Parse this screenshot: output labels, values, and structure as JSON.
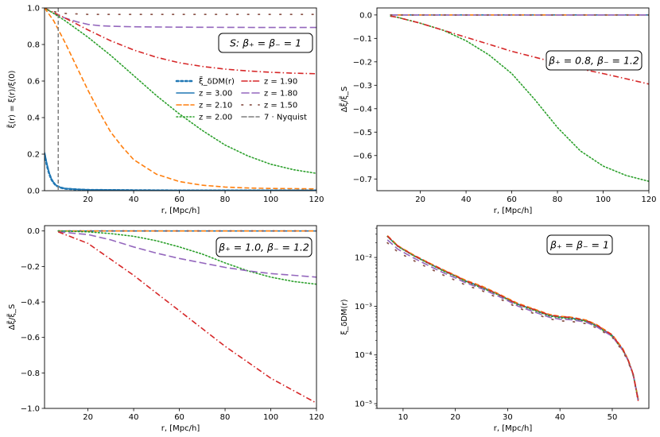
{
  "colors": {
    "z300": "#1f77b4",
    "z210": "#ff7f0e",
    "z200": "#2ca02c",
    "z190": "#d62728",
    "z180": "#9467bd",
    "z150": "#8c564b",
    "nyquist": "#7f7f7f"
  },
  "chart_data": [
    {
      "id": "p1",
      "type": "line",
      "ylabel": "ξ̃(r) = ξ(r)/ξ(0)",
      "xlabel": "r, [Mpc/h]",
      "xlim": [
        1,
        120
      ],
      "ylim": [
        0,
        1.0
      ],
      "yscale": "linear",
      "xticks": [
        "20",
        "40",
        "60",
        "80",
        "100",
        "120"
      ],
      "xtick_values": [
        20,
        40,
        60,
        80,
        100,
        120
      ],
      "yticks": [
        "0.0",
        "0.2",
        "0.4",
        "0.6",
        "0.8",
        "1.0"
      ],
      "ytick_values": [
        0,
        0.2,
        0.4,
        0.6,
        0.8,
        1.0
      ],
      "box_text": "S: β₊ = β₋ = 1",
      "legend": {
        "placement": "center-right",
        "entries": [
          {
            "label": "ξ̃_δDM(r)",
            "color_key": "z300",
            "dash": "dots-thick"
          },
          {
            "label": "z = 3.00",
            "color_key": "z300",
            "dash": "solid"
          },
          {
            "label": "z = 2.10",
            "color_key": "z210",
            "dash": "dashed"
          },
          {
            "label": "z = 2.00",
            "color_key": "z200",
            "dash": "dotted"
          },
          {
            "label": "z = 1.90",
            "color_key": "z190",
            "dash": "dashdot"
          },
          {
            "label": "z = 1.80",
            "color_key": "z180",
            "dash": "longdash"
          },
          {
            "label": "z = 1.50",
            "color_key": "z150",
            "dash": "sparse-dots"
          },
          {
            "label": "7 · Nyquist",
            "color_key": "nyquist",
            "dash": "dashed"
          }
        ]
      },
      "vline_x": 7,
      "series": [
        {
          "name": "z = 1.50",
          "color_key": "z150",
          "dash": "sparse-dots",
          "x": [
            1,
            5,
            10,
            20,
            40,
            60,
            80,
            100,
            120
          ],
          "y": [
            1.0,
            0.98,
            0.97,
            0.965,
            0.965,
            0.965,
            0.965,
            0.965,
            0.965
          ]
        },
        {
          "name": "z = 1.80",
          "color_key": "z180",
          "dash": "longdash",
          "x": [
            1,
            5,
            10,
            15,
            20,
            25,
            30,
            40,
            60,
            80,
            100,
            120
          ],
          "y": [
            1.0,
            0.97,
            0.945,
            0.925,
            0.91,
            0.903,
            0.9,
            0.897,
            0.895,
            0.894,
            0.893,
            0.893
          ]
        },
        {
          "name": "z = 1.90",
          "color_key": "z190",
          "dash": "dashdot",
          "x": [
            1,
            5,
            10,
            20,
            30,
            40,
            50,
            60,
            70,
            80,
            90,
            100,
            110,
            120
          ],
          "y": [
            1.0,
            0.975,
            0.945,
            0.88,
            0.82,
            0.77,
            0.73,
            0.7,
            0.68,
            0.665,
            0.655,
            0.648,
            0.643,
            0.64
          ]
        },
        {
          "name": "z = 2.00",
          "color_key": "z200",
          "dash": "dotted",
          "x": [
            1,
            5,
            10,
            20,
            30,
            40,
            50,
            60,
            70,
            80,
            90,
            100,
            110,
            120
          ],
          "y": [
            1.0,
            0.97,
            0.93,
            0.84,
            0.74,
            0.63,
            0.52,
            0.42,
            0.33,
            0.25,
            0.19,
            0.145,
            0.115,
            0.095
          ]
        },
        {
          "name": "z = 2.10",
          "color_key": "z210",
          "dash": "dashed",
          "x": [
            1,
            5,
            10,
            15,
            20,
            25,
            30,
            35,
            40,
            50,
            60,
            70,
            80,
            90,
            100,
            120
          ],
          "y": [
            1.0,
            0.93,
            0.81,
            0.68,
            0.55,
            0.43,
            0.32,
            0.24,
            0.17,
            0.09,
            0.05,
            0.03,
            0.02,
            0.015,
            0.012,
            0.01
          ]
        },
        {
          "name": "z = 3.00",
          "color_key": "z300",
          "dash": "solid",
          "x": [
            1,
            2,
            3,
            4,
            5,
            6,
            8,
            10,
            15,
            20,
            40,
            60,
            80,
            100,
            120
          ],
          "y": [
            0.21,
            0.15,
            0.1,
            0.065,
            0.045,
            0.03,
            0.018,
            0.012,
            0.008,
            0.005,
            0.003,
            0.002,
            0.002,
            0.002,
            0.002
          ]
        },
        {
          "name": "ξ̃_δDM(r)",
          "color_key": "z300",
          "dash": "dots-thick",
          "x": [
            1,
            2,
            3,
            4,
            5,
            6,
            8,
            10,
            15,
            20,
            40,
            60,
            80,
            100,
            120
          ],
          "y": [
            0.2,
            0.14,
            0.095,
            0.062,
            0.043,
            0.028,
            0.017,
            0.011,
            0.007,
            0.004,
            0.002,
            0.001,
            0.001,
            0.001,
            0.001
          ]
        }
      ]
    },
    {
      "id": "p2",
      "type": "line",
      "ylabel": "Δξ̃/ξ̃_S",
      "xlabel": "r, [Mpc/h]",
      "xlim": [
        1,
        120
      ],
      "ylim": [
        -0.75,
        0.03
      ],
      "yscale": "linear",
      "xticks": [
        "20",
        "40",
        "60",
        "80",
        "100",
        "120"
      ],
      "xtick_values": [
        20,
        40,
        60,
        80,
        100,
        120
      ],
      "yticks": [
        "0.0",
        "−0.1",
        "−0.2",
        "−0.3",
        "−0.4",
        "−0.5",
        "−0.6",
        "−0.7"
      ],
      "ytick_values": [
        0,
        -0.1,
        -0.2,
        -0.3,
        -0.4,
        -0.5,
        -0.6,
        -0.7
      ],
      "box_text": "β₊ = 0.8, β₋ = 1.2",
      "series": [
        {
          "name": "z = 3.00",
          "color_key": "z300",
          "dash": "solid",
          "x": [
            7,
            120
          ],
          "y": [
            0.0,
            0.0
          ]
        },
        {
          "name": "z = 2.10",
          "color_key": "z210",
          "dash": "dashed",
          "x": [
            7,
            120
          ],
          "y": [
            0.0,
            0.0
          ]
        },
        {
          "name": "z = 1.80",
          "color_key": "z180",
          "dash": "longdash",
          "x": [
            7,
            120
          ],
          "y": [
            0.0,
            0.0
          ]
        },
        {
          "name": "z = 1.50",
          "color_key": "z150",
          "dash": "sparse-dots",
          "x": [
            7,
            120
          ],
          "y": [
            0.0,
            0.0
          ]
        },
        {
          "name": "z = 2.00",
          "color_key": "z200",
          "dash": "dotted",
          "x": [
            7,
            10,
            20,
            30,
            40,
            50,
            60,
            70,
            80,
            90,
            100,
            110,
            120
          ],
          "y": [
            -0.005,
            -0.01,
            -0.035,
            -0.065,
            -0.11,
            -0.17,
            -0.25,
            -0.36,
            -0.48,
            -0.58,
            -0.645,
            -0.685,
            -0.71
          ]
        },
        {
          "name": "z = 1.90",
          "color_key": "z190",
          "dash": "dashdot",
          "x": [
            7,
            10,
            20,
            30,
            40,
            50,
            60,
            70,
            80,
            90,
            100,
            110,
            120
          ],
          "y": [
            -0.005,
            -0.01,
            -0.035,
            -0.065,
            -0.095,
            -0.125,
            -0.155,
            -0.18,
            -0.205,
            -0.23,
            -0.25,
            -0.272,
            -0.295
          ]
        }
      ]
    },
    {
      "id": "p3",
      "type": "line",
      "ylabel": "Δξ̃/ξ̃_S",
      "xlabel": "r, [Mpc/h]",
      "xlim": [
        1,
        120
      ],
      "ylim": [
        -1.0,
        0.03
      ],
      "yscale": "linear",
      "xticks": [
        "20",
        "40",
        "60",
        "80",
        "100",
        "120"
      ],
      "xtick_values": [
        20,
        40,
        60,
        80,
        100,
        120
      ],
      "yticks": [
        "0.0",
        "−0.2",
        "−0.4",
        "−0.6",
        "−0.8",
        "−1.0"
      ],
      "ytick_values": [
        0,
        -0.2,
        -0.4,
        -0.6,
        -0.8,
        -1.0
      ],
      "box_text": "β₊ = 1.0, β₋ = 1.2",
      "series": [
        {
          "name": "z = 3.00",
          "color_key": "z300",
          "dash": "solid",
          "x": [
            7,
            120
          ],
          "y": [
            0.0,
            0.0
          ]
        },
        {
          "name": "z = 2.10",
          "color_key": "z210",
          "dash": "dashed",
          "x": [
            7,
            120
          ],
          "y": [
            0.0,
            0.0
          ]
        },
        {
          "name": "z = 1.50",
          "color_key": "z150",
          "dash": "sparse-dots",
          "x": [
            7,
            120
          ],
          "y": [
            0.0,
            0.0
          ]
        },
        {
          "name": "z = 2.00",
          "color_key": "z200",
          "dash": "dotted",
          "x": [
            7,
            20,
            30,
            40,
            50,
            60,
            70,
            80,
            90,
            100,
            110,
            120
          ],
          "y": [
            0.0,
            -0.005,
            -0.015,
            -0.03,
            -0.055,
            -0.09,
            -0.13,
            -0.18,
            -0.225,
            -0.26,
            -0.285,
            -0.3
          ]
        },
        {
          "name": "z = 1.80",
          "color_key": "z180",
          "dash": "longdash",
          "x": [
            7,
            20,
            30,
            40,
            50,
            60,
            70,
            80,
            90,
            100,
            110,
            120
          ],
          "y": [
            -0.005,
            -0.02,
            -0.05,
            -0.09,
            -0.125,
            -0.155,
            -0.18,
            -0.205,
            -0.225,
            -0.24,
            -0.25,
            -0.26
          ]
        },
        {
          "name": "z = 1.90",
          "color_key": "z190",
          "dash": "dashdot",
          "x": [
            7,
            20,
            30,
            40,
            50,
            60,
            70,
            80,
            90,
            100,
            110,
            120
          ],
          "y": [
            -0.005,
            -0.07,
            -0.16,
            -0.25,
            -0.35,
            -0.45,
            -0.55,
            -0.65,
            -0.74,
            -0.83,
            -0.9,
            -0.97
          ]
        }
      ]
    },
    {
      "id": "p4",
      "type": "line",
      "ylabel": "ξ_δDM(r)",
      "xlabel": "r, [Mpc/h]",
      "xlim": [
        5,
        57
      ],
      "ylim": [
        8e-06,
        0.045
      ],
      "yscale": "log",
      "xticks": [
        "10",
        "20",
        "30",
        "40",
        "50"
      ],
      "xtick_values": [
        10,
        20,
        30,
        40,
        50
      ],
      "yticks": [
        "10⁻²",
        "10⁻³",
        "10⁻⁴",
        "10⁻⁵"
      ],
      "ytick_values": [
        0.01,
        0.001,
        0.0001,
        1e-05
      ],
      "box_text": "β₊ = β₋ = 1",
      "series": [
        {
          "name": "z = 3.00",
          "color_key": "z300",
          "dash": "solid",
          "x": [
            7,
            9,
            12,
            15,
            18,
            20,
            22,
            25,
            28,
            30,
            32,
            35,
            38,
            40,
            42,
            45,
            47,
            50,
            52,
            53,
            54,
            55
          ],
          "y": [
            0.027,
            0.017,
            0.011,
            0.0075,
            0.0052,
            0.0042,
            0.0033,
            0.0025,
            0.0018,
            0.0014,
            0.0011,
            0.00085,
            0.00065,
            0.0006,
            0.00058,
            0.0005,
            0.0004,
            0.00025,
            0.00013,
            8e-05,
            4e-05,
            1.2e-05
          ]
        },
        {
          "name": "z = 2.10",
          "color_key": "z210",
          "dash": "dashed",
          "x": [
            7,
            9,
            12,
            15,
            18,
            20,
            22,
            25,
            28,
            30,
            32,
            35,
            38,
            40,
            42,
            45,
            47,
            50,
            52,
            53,
            54,
            55
          ],
          "y": [
            0.028,
            0.0175,
            0.0113,
            0.0077,
            0.0054,
            0.0043,
            0.0034,
            0.0026,
            0.00185,
            0.00145,
            0.00114,
            0.00088,
            0.00068,
            0.00062,
            0.0006,
            0.00052,
            0.00042,
            0.00026,
            0.000135,
            8.2e-05,
            4.1e-05,
            1.2e-05
          ]
        },
        {
          "name": "z = 2.00",
          "color_key": "z200",
          "dash": "dotted",
          "x": [
            7,
            9,
            12,
            15,
            18,
            20,
            22,
            25,
            28,
            30,
            32,
            35,
            38,
            40,
            42,
            45,
            47,
            50,
            52,
            53,
            54,
            55
          ],
          "y": [
            0.027,
            0.0168,
            0.0109,
            0.0074,
            0.0051,
            0.0041,
            0.0032,
            0.0024,
            0.00175,
            0.00137,
            0.00107,
            0.00083,
            0.00063,
            0.00058,
            0.00056,
            0.00049,
            0.00039,
            0.00024,
            0.000125,
            7.8e-05,
            3.9e-05,
            1.1e-05
          ]
        },
        {
          "name": "z = 1.80",
          "color_key": "z180",
          "dash": "longdash",
          "x": [
            7,
            9,
            12,
            15,
            18,
            20,
            22,
            25,
            28,
            30,
            32,
            35,
            38,
            40,
            42,
            45,
            47,
            50,
            52,
            53,
            54,
            55
          ],
          "y": [
            0.023,
            0.0148,
            0.0098,
            0.0067,
            0.0047,
            0.0038,
            0.003,
            0.0023,
            0.00165,
            0.0013,
            0.001,
            0.00077,
            0.00059,
            0.00054,
            0.00053,
            0.00047,
            0.00038,
            0.00024,
            0.000125,
            7.8e-05,
            3.9e-05,
            1.1e-05
          ]
        },
        {
          "name": "z = 1.50",
          "color_key": "z150",
          "dash": "sparse-dots",
          "x": [
            7,
            9,
            12,
            15,
            18,
            20,
            22,
            25,
            28,
            30,
            32,
            35,
            38,
            40,
            42,
            45,
            47,
            50,
            52,
            53,
            54,
            55
          ],
          "y": [
            0.02,
            0.013,
            0.0087,
            0.006,
            0.0042,
            0.0034,
            0.0027,
            0.0021,
            0.0015,
            0.00118,
            0.00092,
            0.00071,
            0.00055,
            0.0005,
            0.00049,
            0.00044,
            0.00036,
            0.00023,
            0.00012,
            7.5e-05,
            3.8e-05,
            1.1e-05
          ]
        },
        {
          "name": "z = 1.90",
          "color_key": "z190",
          "dash": "dashdot",
          "x": [
            7,
            9,
            12,
            15,
            18,
            20,
            22,
            25,
            28,
            30,
            32,
            35,
            38,
            40,
            42,
            45,
            47,
            50,
            52,
            53,
            54,
            55
          ],
          "y": [
            0.0275,
            0.0172,
            0.0111,
            0.0076,
            0.0053,
            0.0042,
            0.0033,
            0.0025,
            0.0018,
            0.0014,
            0.0011,
            0.00086,
            0.00066,
            0.00061,
            0.00059,
            0.00051,
            0.00041,
            0.000255,
            0.00013,
            8e-05,
            4e-05,
            1.1e-05
          ]
        }
      ]
    }
  ]
}
